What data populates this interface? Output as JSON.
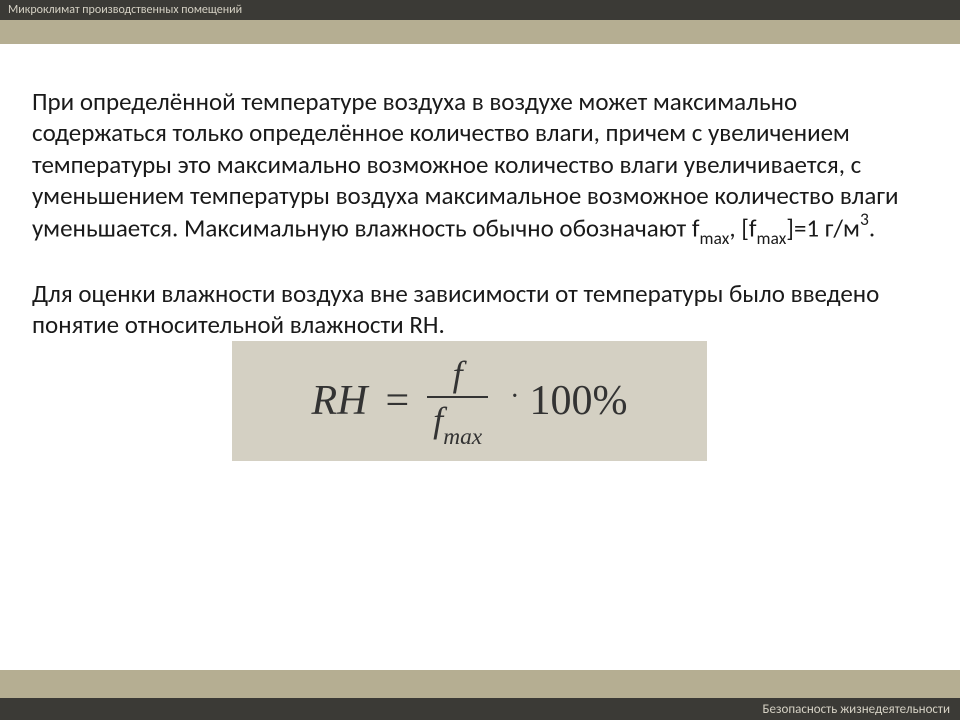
{
  "header": {
    "title": "Микроклимат производственных помещений"
  },
  "content": {
    "para1_part1": "При определённой температуре воздуха в воздухе может максимально содержаться только определённое количество влаги, причем с увеличением температуры это максимально возможное количество влаги увеличивается, с уменьшением температуры воздуха максимальное возможное количество влаги уменьшается. Максимальную влажность обычно обозначают f",
    "para1_sub1": "max",
    "para1_mid": ", [f",
    "para1_sub2": "max",
    "para1_part2": "]=1 г/м",
    "para1_sup": "3",
    "para1_end": ".",
    "para2": "Для оценки влажности воздуха вне зависимости от температуры было введено понятие относительной влажности RH."
  },
  "formula": {
    "lhs": "RH",
    "eq": "=",
    "num": "f",
    "den_base": "f",
    "den_sub": "max",
    "dot": "·",
    "rhs": "100%",
    "background_color": "#d4d0c3"
  },
  "footer": {
    "text": "Безопасность жизнедеятельности"
  },
  "colors": {
    "dark_bar": "#3b3a36",
    "olive_bar": "#b5ae92",
    "bar_text": "#d4d0c3",
    "body_text": "#1a1a1a"
  }
}
